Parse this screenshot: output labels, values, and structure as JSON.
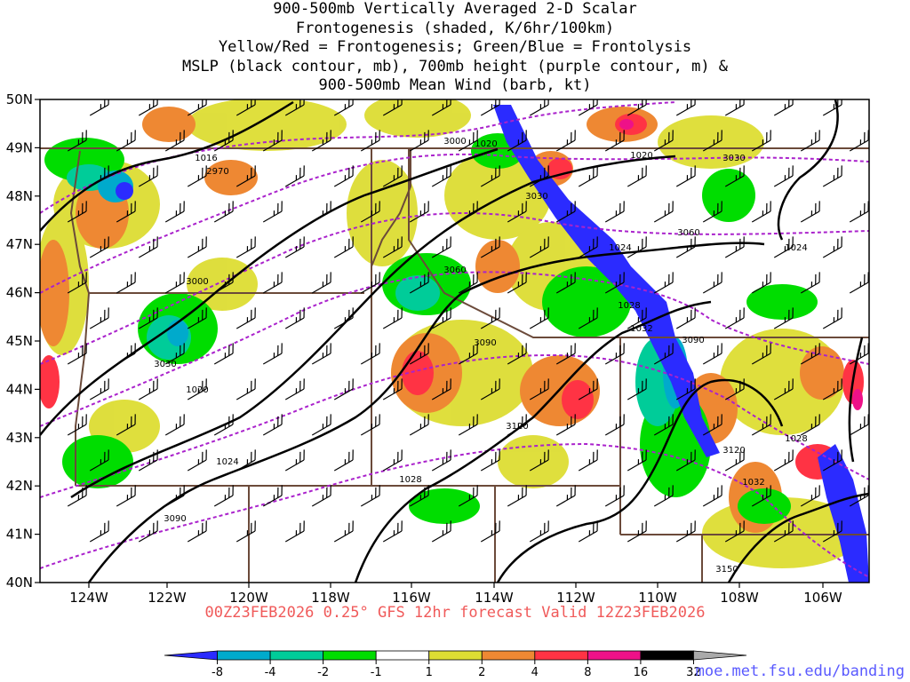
{
  "title_lines": [
    "900-500mb Vertically Averaged 2-D Scalar",
    "Frontogenesis (shaded, K/6hr/100km)",
    "Yellow/Red = Frontogenesis;  Green/Blue = Frontolysis",
    "MSLP (black contour, mb), 700mb height (purple contour, m) &",
    "900-500mb Mean Wind (barb, kt)"
  ],
  "subtitle": "00Z23FEB2026 0.25° GFS 12hr forecast Valid 12Z23FEB2026",
  "credit": "moe.met.fsu.edu/banding",
  "axes": {
    "lon_labels": [
      "124W",
      "122W",
      "120W",
      "118W",
      "116W",
      "114W",
      "112W",
      "110W",
      "108W",
      "106W"
    ],
    "lat_labels": [
      "50N",
      "49N",
      "48N",
      "47N",
      "46N",
      "45N",
      "44N",
      "43N",
      "42N",
      "41N",
      "40N"
    ]
  },
  "colorbar": {
    "labels": [
      "-8",
      "-4",
      "-2",
      "-1",
      "1",
      "2",
      "4",
      "8",
      "16",
      "32"
    ],
    "colors": [
      "#2b2bff",
      "#00aacc",
      "#00cc99",
      "#00dd00",
      "#ffffff",
      "#dddd33",
      "#ee8833",
      "#ff3344",
      "#ee1188",
      "#000000",
      "#aaaaaa"
    ]
  },
  "mslp_labels": [
    {
      "text": "1016"
    },
    {
      "text": "1020"
    },
    {
      "text": "1020"
    },
    {
      "text": "1024"
    },
    {
      "text": "1028"
    },
    {
      "text": "1032"
    },
    {
      "text": "1020"
    },
    {
      "text": "1024"
    },
    {
      "text": "1028"
    },
    {
      "text": "1032"
    },
    {
      "text": "1028"
    },
    {
      "text": "1024"
    }
  ],
  "height_labels": [
    {
      "text": "2970"
    },
    {
      "text": "3000"
    },
    {
      "text": "3000"
    },
    {
      "text": "3030"
    },
    {
      "text": "3030"
    },
    {
      "text": "3060"
    },
    {
      "text": "3060"
    },
    {
      "text": "3030"
    },
    {
      "text": "3090"
    },
    {
      "text": "3090"
    },
    {
      "text": "3120"
    },
    {
      "text": "3120"
    },
    {
      "text": "3090"
    },
    {
      "text": "3150"
    }
  ],
  "colors": {
    "mslp_contour": "#000000",
    "height_contour": "#aa22cc",
    "borders": "#6b4a3a",
    "barb": "#000000",
    "subtitle": "#f05a5a",
    "credit": "#5a5aff"
  }
}
